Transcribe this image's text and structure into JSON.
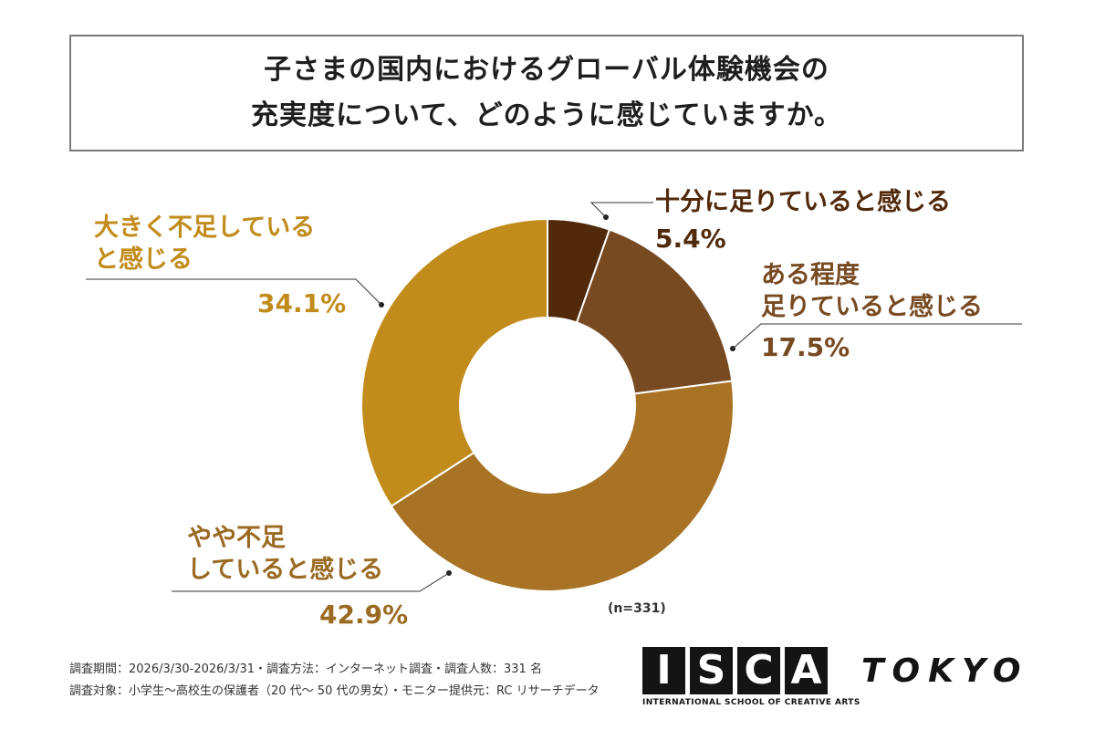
{
  "title_lines": [
    "子さまの国内におけるグローバル体験機会の",
    "充実度について、どのように感じていますか。"
  ],
  "chart_data": {
    "type": "pie",
    "title": "子さまの国内におけるグローバル体験機会の充実度について、どのように感じていますか。",
    "categories": [
      "十分に足りていると感じる",
      "ある程度足りていると感じる",
      "やや不足していると感じる",
      "大きく不足していると感じる"
    ],
    "values": [
      5.4,
      17.5,
      42.9,
      34.1
    ],
    "value_labels": [
      "5.4%",
      "17.5%",
      "42.9%",
      "34.1%"
    ],
    "label_lines": [
      [
        "十分に足りていると感じる"
      ],
      [
        "ある程度",
        "足りていると感じる"
      ],
      [
        "やや不足",
        "していると感じる"
      ],
      [
        "大きく不足している",
        "と感じる"
      ]
    ],
    "colors": [
      "#512a0c",
      "#774a21",
      "#a87325",
      "#c18c1b"
    ],
    "label_colors": [
      "#512a0c",
      "#774a21",
      "#9a6a22",
      "#c18c1b"
    ],
    "hole": true,
    "legend": "none",
    "note": "(n=331)"
  },
  "footer": {
    "line1": "調査期間：2026/3/30-2026/3/31・調査方法：インターネット調査・調査人数：331 名",
    "line2": "調査対象：小学生〜高校生の保護者（20 代〜 50 代の男女）・モニター提供元：RC リサーチデータ"
  },
  "logo": {
    "letters": [
      "I",
      "S",
      "C",
      "A"
    ],
    "word": "TOKYO",
    "tagline": "INTERNATIONAL SCHOOL OF CREATIVE ARTS"
  }
}
